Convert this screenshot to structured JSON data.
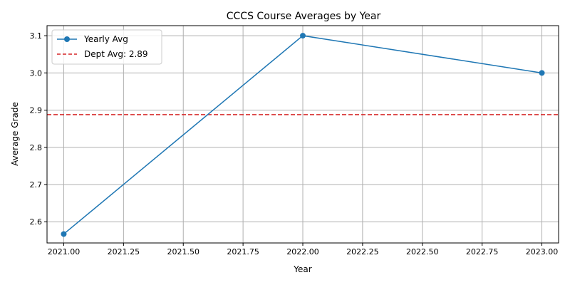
{
  "chart_data": {
    "type": "line",
    "title": "CCCS Course Averages by Year",
    "xlabel": "Year",
    "ylabel": "Average Grade",
    "xlim": [
      2020.93,
      2023.07
    ],
    "ylim": [
      2.543,
      3.127
    ],
    "xticks": [
      "2021.00",
      "2021.25",
      "2021.50",
      "2021.75",
      "2022.00",
      "2022.25",
      "2022.50",
      "2022.75",
      "2023.00"
    ],
    "yticks": [
      "2.6",
      "2.7",
      "2.8",
      "2.9",
      "3.0",
      "3.1"
    ],
    "grid": true,
    "legend_position": "top-left",
    "series": [
      {
        "name": "Yearly Avg",
        "x": [
          2021,
          2022,
          2023
        ],
        "y": [
          2.567,
          3.1,
          3.0
        ],
        "color": "#1f77b4",
        "style": "solid",
        "marker": "circle"
      }
    ],
    "reference_lines": [
      {
        "name": "Dept Avg: 2.89",
        "y": 2.888,
        "color": "#d62728",
        "style": "dashed"
      }
    ]
  }
}
